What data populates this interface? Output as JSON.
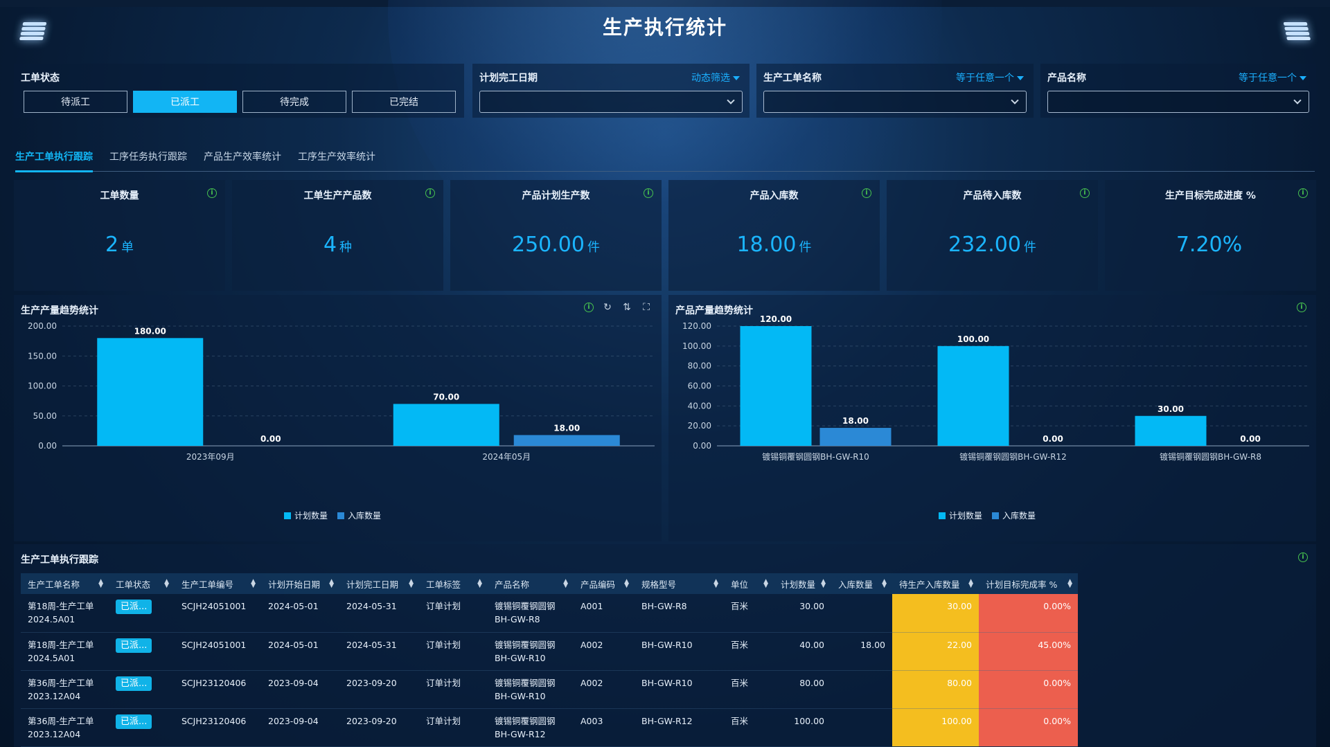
{
  "page": {
    "title": "生产执行统计"
  },
  "filters": {
    "status": {
      "label": "工单状态",
      "options": [
        "待派工",
        "已派工",
        "待完成",
        "已完结"
      ],
      "selected": "已派工"
    },
    "plan_date": {
      "label": "计划完工日期",
      "mode": "动态筛选",
      "value": ""
    },
    "order_name": {
      "label": "生产工单名称",
      "mode": "等于任意一个",
      "value": ""
    },
    "product_name": {
      "label": "产品名称",
      "mode": "等于任意一个",
      "value": ""
    }
  },
  "tabs": [
    {
      "label": "生产工单执行跟踪",
      "active": true
    },
    {
      "label": "工序任务执行跟踪",
      "active": false
    },
    {
      "label": "产品生产效率统计",
      "active": false
    },
    {
      "label": "工序生产效率统计",
      "active": false
    }
  ],
  "kpis": [
    {
      "label": "工单数量",
      "value": "2",
      "unit": "单"
    },
    {
      "label": "工单生产产品数",
      "value": "4",
      "unit": "种"
    },
    {
      "label": "产品计划生产数",
      "value": "250.00",
      "unit": "件"
    },
    {
      "label": "产品入库数",
      "value": "18.00",
      "unit": "件"
    },
    {
      "label": "产品待入库数",
      "value": "232.00",
      "unit": "件"
    },
    {
      "label": "生产目标完成进度 %",
      "value": "7.20%",
      "unit": ""
    }
  ],
  "colors": {
    "accent": "#12b5f4",
    "planned": "#03b9f5",
    "stocked": "#2b89d6",
    "amber": "#f4be1f",
    "red": "#ec5f4e",
    "info": "#47c24f"
  },
  "chart_data": [
    {
      "type": "bar",
      "title": "生产产量趋势统计",
      "categories": [
        "2023年09月",
        "2024年05月"
      ],
      "series": [
        {
          "name": "计划数量",
          "values": [
            180.0,
            70.0
          ]
        },
        {
          "name": "入库数量",
          "values": [
            0.0,
            18.0
          ]
        }
      ],
      "ylim": [
        0,
        200
      ],
      "yticks": [
        "0.00",
        "50.00",
        "100.00",
        "150.00",
        "200.00"
      ],
      "grid": true,
      "legend": "bottom-center",
      "tools": [
        "info-icon",
        "refresh-icon",
        "sort-icon",
        "fullscreen-icon"
      ]
    },
    {
      "type": "bar",
      "title": "产品产量趋势统计",
      "categories": [
        "镀锡铜覆钢圆钢BH-GW-R10",
        "镀锡铜覆钢圆钢BH-GW-R12",
        "镀锡铜覆钢圆钢BH-GW-R8"
      ],
      "series": [
        {
          "name": "计划数量",
          "values": [
            120.0,
            100.0,
            30.0
          ]
        },
        {
          "name": "入库数量",
          "values": [
            18.0,
            0.0,
            0.0
          ]
        }
      ],
      "ylim": [
        0,
        120
      ],
      "yticks": [
        "0.00",
        "20.00",
        "40.00",
        "60.00",
        "80.00",
        "100.00",
        "120.00"
      ],
      "grid": true,
      "legend": "bottom-center"
    }
  ],
  "table": {
    "title": "生产工单执行跟踪",
    "columns": [
      "生产工单名称",
      "工单状态",
      "生产工单编号",
      "计划开始日期",
      "计划完工日期",
      "工单标签",
      "产品名称",
      "产品编码",
      "规格型号",
      "单位",
      "计划数量",
      "入库数量",
      "待生产入库数量",
      "计划目标完成率 %"
    ],
    "rows": [
      {
        "name1": "第18周-生产工单",
        "name2": "2024.5A01",
        "status": "已派...",
        "code": "SCJH24051001",
        "start": "2024-05-01",
        "end": "2024-05-31",
        "tag": "订单计划",
        "prod1": "镀锡铜覆钢圆钢",
        "prod2": "BH-GW-R8",
        "pcode": "A001",
        "spec": "BH-GW-R8",
        "unit": "百米",
        "plan": "30.00",
        "stock": "",
        "pending": "30.00",
        "rate": "0.00%"
      },
      {
        "name1": "第18周-生产工单",
        "name2": "2024.5A01",
        "status": "已派...",
        "code": "SCJH24051001",
        "start": "2024-05-01",
        "end": "2024-05-31",
        "tag": "订单计划",
        "prod1": "镀锡铜覆钢圆钢",
        "prod2": "BH-GW-R10",
        "pcode": "A002",
        "spec": "BH-GW-R10",
        "unit": "百米",
        "plan": "40.00",
        "stock": "18.00",
        "pending": "22.00",
        "rate": "45.00%"
      },
      {
        "name1": "第36周-生产工单",
        "name2": "2023.12A04",
        "status": "已派...",
        "code": "SCJH23120406",
        "start": "2023-09-04",
        "end": "2023-09-20",
        "tag": "订单计划",
        "prod1": "镀锡铜覆钢圆钢",
        "prod2": "BH-GW-R10",
        "pcode": "A002",
        "spec": "BH-GW-R10",
        "unit": "百米",
        "plan": "80.00",
        "stock": "",
        "pending": "80.00",
        "rate": "0.00%"
      },
      {
        "name1": "第36周-生产工单",
        "name2": "2023.12A04",
        "status": "已派...",
        "code": "SCJH23120406",
        "start": "2023-09-04",
        "end": "2023-09-20",
        "tag": "订单计划",
        "prod1": "镀锡铜覆钢圆钢",
        "prod2": "BH-GW-R12",
        "pcode": "A003",
        "spec": "BH-GW-R12",
        "unit": "百米",
        "plan": "100.00",
        "stock": "",
        "pending": "100.00",
        "rate": "0.00%"
      }
    ]
  }
}
